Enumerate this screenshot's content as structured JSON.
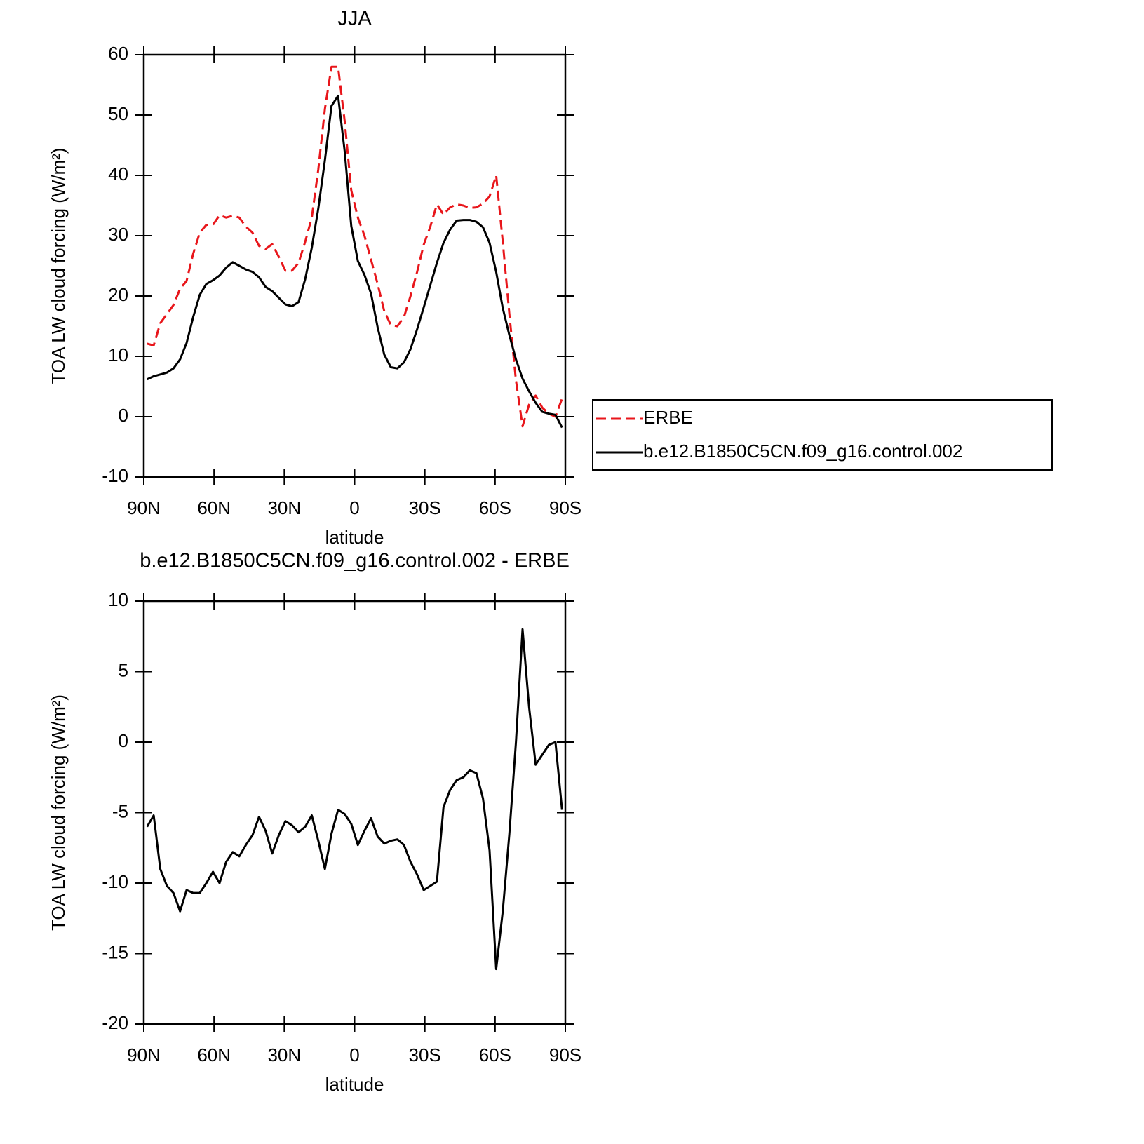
{
  "chart_data": [
    {
      "type": "line",
      "title": "JJA",
      "xlabel": "latitude",
      "ylabel": "TOA LW cloud forcing (W/m²)",
      "x": [
        88.59,
        85.78,
        82.97,
        80.16,
        77.34,
        74.53,
        71.72,
        68.91,
        66.09,
        63.28,
        60.47,
        57.66,
        54.84,
        52.03,
        49.22,
        46.41,
        43.59,
        40.78,
        37.97,
        35.16,
        32.34,
        29.53,
        26.72,
        23.91,
        21.09,
        18.28,
        15.47,
        12.66,
        9.84,
        7.03,
        4.22,
        1.41,
        -1.41,
        -4.22,
        -7.03,
        -9.84,
        -12.66,
        -15.47,
        -18.28,
        -21.09,
        -23.91,
        -26.72,
        -29.53,
        -32.34,
        -35.16,
        -37.97,
        -40.78,
        -43.59,
        -46.41,
        -49.22,
        -52.03,
        -54.84,
        -57.66,
        -60.47,
        -63.28,
        -66.09,
        -68.91,
        -71.72,
        -74.53,
        -77.34,
        -80.16,
        -82.97,
        -85.78,
        -88.59
      ],
      "series": [
        {
          "name": "ERBE",
          "color": "#e8161b",
          "style": "dashed",
          "values": [
            12.1,
            11.8,
            15.5,
            17,
            18.5,
            21.2,
            22.5,
            27,
            30.5,
            31.8,
            31.8,
            33.4,
            33,
            33.3,
            33,
            31.5,
            30.5,
            28.3,
            27.8,
            28.6,
            26.5,
            24.2,
            24.2,
            25.5,
            29,
            33,
            41,
            51,
            58,
            58,
            49,
            37.5,
            33,
            30,
            26,
            22,
            17.5,
            15.2,
            15,
            16.5,
            20,
            24,
            28.5,
            31.5,
            35.2,
            33.5,
            34.7,
            35.2,
            35,
            34.6,
            34.7,
            35.3,
            36.5,
            40,
            29,
            17,
            6,
            -1.6,
            2,
            3.5,
            1.5,
            0.5,
            0,
            3
          ]
        },
        {
          "name": "b.e12.B1850C5CN.f09_g16.control.002",
          "color": "#000000",
          "style": "solid",
          "values": [
            6.2,
            6.7,
            7,
            7.3,
            8,
            9.5,
            12.2,
            16.5,
            20.2,
            22,
            22.6,
            23.4,
            24.7,
            25.6,
            25,
            24.4,
            24,
            23.1,
            21.5,
            20.8,
            19.7,
            18.6,
            18.3,
            19,
            22.8,
            28,
            34.5,
            42.5,
            51.5,
            53.2,
            44,
            31.6,
            25.8,
            23.5,
            20.4,
            14.8,
            10.3,
            8.2,
            8,
            9,
            11.2,
            14.5,
            18.1,
            21.8,
            25.5,
            28.8,
            31,
            32.5,
            32.6,
            32.6,
            32.3,
            31.4,
            28.8,
            24,
            18,
            13.5,
            9.5,
            6.3,
            4.2,
            2.3,
            0.8,
            0.5,
            0.3,
            -1.8
          ]
        }
      ],
      "xlim": [
        90,
        -90
      ],
      "xticks": [
        {
          "value": 90,
          "label": "90N"
        },
        {
          "value": 60,
          "label": "60N"
        },
        {
          "value": 30,
          "label": "30N"
        },
        0,
        {
          "value": -30,
          "label": "30S"
        },
        {
          "value": -60,
          "label": "60S"
        },
        {
          "value": -90,
          "label": "90S"
        }
      ],
      "ylim": [
        -10,
        60
      ],
      "yticks": [
        -10,
        0,
        10,
        20,
        30,
        40,
        50,
        60
      ]
    },
    {
      "type": "line",
      "title": "b.e12.B1850C5CN.f09_g16.control.002 - ERBE",
      "xlabel": "latitude",
      "ylabel": "TOA LW cloud forcing (W/m²)",
      "x": [
        88.59,
        85.78,
        82.97,
        80.16,
        77.34,
        74.53,
        71.72,
        68.91,
        66.09,
        63.28,
        60.47,
        57.66,
        54.84,
        52.03,
        49.22,
        46.41,
        43.59,
        40.78,
        37.97,
        35.16,
        32.34,
        29.53,
        26.72,
        23.91,
        21.09,
        18.28,
        15.47,
        12.66,
        9.84,
        7.03,
        4.22,
        1.41,
        -1.41,
        -4.22,
        -7.03,
        -9.84,
        -12.66,
        -15.47,
        -18.28,
        -21.09,
        -23.91,
        -26.72,
        -29.53,
        -32.34,
        -35.16,
        -37.97,
        -40.78,
        -43.59,
        -46.41,
        -49.22,
        -52.03,
        -54.84,
        -57.66,
        -60.47,
        -63.28,
        -66.09,
        -68.91,
        -71.72,
        -74.53,
        -77.34,
        -80.16,
        -82.97,
        -85.78,
        -88.59
      ],
      "series": [
        {
          "color": "#000000",
          "style": "solid",
          "values": [
            -6,
            -5.2,
            -9,
            -10.2,
            -10.7,
            -12,
            -10.5,
            -10.7,
            -10.7,
            -10,
            -9.2,
            -10,
            -8.5,
            -7.8,
            -8.1,
            -7.3,
            -6.6,
            -5.3,
            -6.3,
            -7.9,
            -6.6,
            -5.6,
            -5.9,
            -6.4,
            -6,
            -5.2,
            -7,
            -9,
            -6.5,
            -4.8,
            -5.1,
            -5.8,
            -7.3,
            -6.3,
            -5.4,
            -6.7,
            -7.2,
            -7,
            -6.9,
            -7.3,
            -8.5,
            -9.4,
            -10.5,
            -10.2,
            -9.9,
            -4.6,
            -3.4,
            -2.7,
            -2.5,
            -2,
            -2.2,
            -4,
            -7.7,
            -16.1,
            -12,
            -6.5,
            0,
            8,
            2.5,
            -1.6,
            -0.9,
            -0.2,
            0,
            -4.8
          ]
        }
      ],
      "xlim": [
        90,
        -90
      ],
      "xticks": [
        {
          "value": 90,
          "label": "90N"
        },
        {
          "value": 60,
          "label": "60N"
        },
        {
          "value": 30,
          "label": "30N"
        },
        0,
        {
          "value": -30,
          "label": "30S"
        },
        {
          "value": -60,
          "label": "60S"
        },
        {
          "value": -90,
          "label": "90S"
        }
      ],
      "ylim": [
        -20,
        10
      ],
      "yticks": [
        -20,
        -15,
        -10,
        -5,
        0,
        5,
        10
      ]
    }
  ]
}
